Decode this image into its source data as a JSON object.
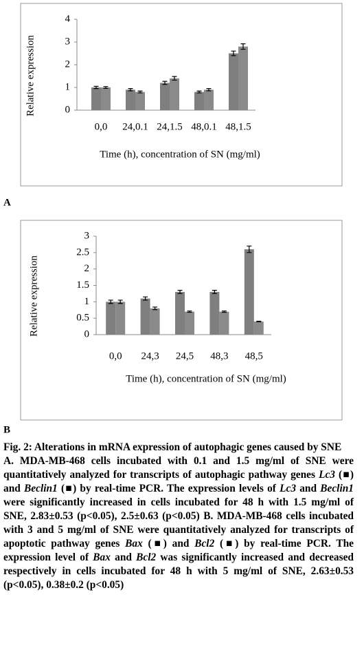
{
  "chart_data": [
    {
      "type": "bar",
      "y_label": "Relative expression",
      "x_label": "Time (h), concentration of SN (mg/ml)",
      "categories": [
        "0,0",
        "24,0.1",
        "24,1.5",
        "48,0.1",
        "48,1.5"
      ],
      "series": [
        {
          "color": "#7f7f7f",
          "values": [
            1.0,
            0.9,
            1.2,
            0.8,
            2.5
          ],
          "errors": [
            0.05,
            0.05,
            0.07,
            0.04,
            0.1
          ]
        },
        {
          "color": "#8a8a8a",
          "values": [
            1.0,
            0.8,
            1.4,
            0.9,
            2.8
          ],
          "errors": [
            0.04,
            0.04,
            0.08,
            0.05,
            0.12
          ]
        }
      ],
      "ylim": [
        0,
        4
      ],
      "yticks": [
        0,
        1,
        2,
        3,
        4
      ],
      "grid": false
    },
    {
      "type": "bar",
      "y_label": "Relative expression",
      "x_label": "Time (h), concentration of SN (mg/ml)",
      "categories": [
        "0,0",
        "24,3",
        "24,5",
        "48,3",
        "48,5"
      ],
      "series": [
        {
          "color": "#7f7f7f",
          "values": [
            1.0,
            1.1,
            1.3,
            1.3,
            2.6
          ],
          "errors": [
            0.05,
            0.05,
            0.05,
            0.05,
            0.1
          ]
        },
        {
          "color": "#8a8a8a",
          "values": [
            1.0,
            0.8,
            0.7,
            0.7,
            0.4
          ],
          "errors": [
            0.05,
            0.04,
            0.02,
            0.02,
            0.01
          ]
        }
      ],
      "ylim": [
        0,
        3
      ],
      "yticks": [
        0,
        0.5,
        1,
        1.5,
        2,
        2.5,
        3
      ],
      "grid": false
    }
  ],
  "panel_labels": [
    "A",
    "B"
  ],
  "caption": {
    "title": "Fig. 2: Alterations in mRNA expression of autophagic genes caused by SNE",
    "body": [
      {
        "text": "A. MDA-MB-468 cells incubated with 0.1 and 1.5 mg/ml of SNE were quantitatively analyzed for transcripts of autophagic pathway genes "
      },
      {
        "text": "Lc3",
        "italic": true
      },
      {
        "text": " (■) and "
      },
      {
        "text": "Beclin1",
        "italic": true
      },
      {
        "text": " (■) by real-time PCR. The expression levels of "
      },
      {
        "text": "Lc3",
        "italic": true
      },
      {
        "text": " and "
      },
      {
        "text": "Beclin1",
        "italic": true
      },
      {
        "text": " were significantly increased in cells incubated for 48 h with 1.5 mg/ml of SNE, 2.83±0.53 (p<0.05), 2.5±0.63 (p<0.05) B. MDA-MB-468 cells incubated with 3 and 5 mg/ml of SNE were quantitatively analyzed for transcripts of apoptotic pathway genes "
      },
      {
        "text": "Bax",
        "italic": true
      },
      {
        "text": " (■) and "
      },
      {
        "text": "Bcl2",
        "italic": true
      },
      {
        "text": " (■) by real-time PCR. The expression level of "
      },
      {
        "text": "Bax",
        "italic": true
      },
      {
        "text": " and "
      },
      {
        "text": "Bcl2",
        "italic": true
      },
      {
        "text": " was significantly increased and decreased respectively in cells incubated for 48 h with 5 mg/ml of SNE, 2.63±0.53 (p<0.05), 0.38±0.2 (p<0.05)"
      }
    ]
  }
}
